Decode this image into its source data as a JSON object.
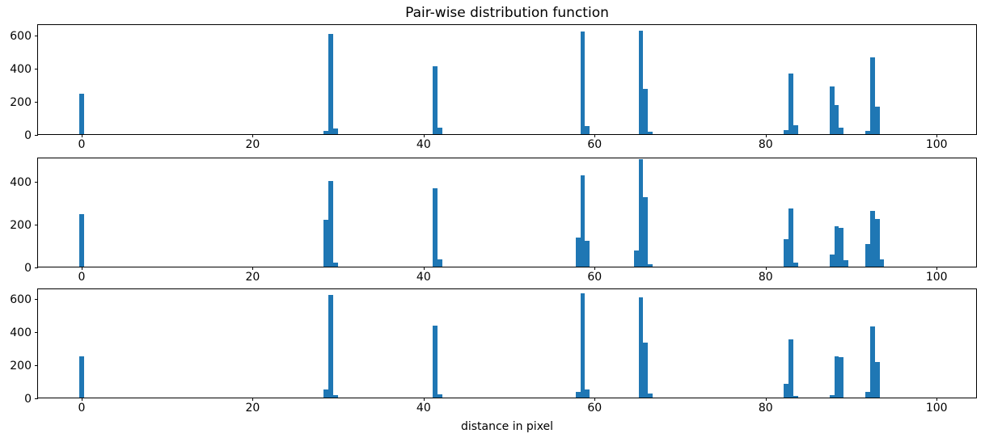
{
  "figure": {
    "title": "Pair-wise distribution function",
    "xlabel": "distance in pixel"
  },
  "chart_data": [
    {
      "type": "bar",
      "title": "Pair-wise distribution function",
      "bar_color": "#1f77b4",
      "bar_width": 0.55,
      "xlim": [
        -5.1,
        104.8
      ],
      "ylim": [
        0,
        668
      ],
      "xticks": [
        0,
        20,
        40,
        60,
        80,
        100
      ],
      "yticks": [
        0,
        200,
        400,
        600
      ],
      "grid": false,
      "legend": "none",
      "bars": [
        [
          0.0,
          245
        ],
        [
          28.6,
          20
        ],
        [
          29.15,
          605
        ],
        [
          29.7,
          35
        ],
        [
          41.35,
          410
        ],
        [
          41.9,
          40
        ],
        [
          58.6,
          620
        ],
        [
          59.15,
          50
        ],
        [
          65.4,
          625
        ],
        [
          65.95,
          275
        ],
        [
          66.5,
          15
        ],
        [
          82.4,
          25
        ],
        [
          82.95,
          365
        ],
        [
          83.5,
          55
        ],
        [
          87.75,
          290
        ],
        [
          88.3,
          175
        ],
        [
          88.85,
          40
        ],
        [
          91.95,
          20
        ],
        [
          92.5,
          465
        ],
        [
          93.05,
          165
        ]
      ]
    },
    {
      "type": "bar",
      "bar_color": "#1f77b4",
      "bar_width": 0.55,
      "xlim": [
        -5.1,
        104.8
      ],
      "ylim": [
        0,
        513
      ],
      "xticks": [
        0,
        20,
        40,
        60,
        80,
        100
      ],
      "yticks": [
        0,
        200,
        400
      ],
      "grid": false,
      "legend": "none",
      "bars": [
        [
          0.0,
          245
        ],
        [
          28.6,
          220
        ],
        [
          29.15,
          400
        ],
        [
          29.7,
          20
        ],
        [
          41.35,
          365
        ],
        [
          41.9,
          35
        ],
        [
          58.05,
          135
        ],
        [
          58.6,
          425
        ],
        [
          59.15,
          120
        ],
        [
          64.85,
          75
        ],
        [
          65.4,
          500
        ],
        [
          65.95,
          325
        ],
        [
          66.5,
          10
        ],
        [
          82.4,
          130
        ],
        [
          82.95,
          270
        ],
        [
          83.5,
          20
        ],
        [
          87.75,
          55
        ],
        [
          88.3,
          190
        ],
        [
          88.85,
          180
        ],
        [
          89.4,
          30
        ],
        [
          91.95,
          105
        ],
        [
          92.5,
          260
        ],
        [
          93.05,
          222
        ],
        [
          93.6,
          34
        ]
      ]
    },
    {
      "type": "bar",
      "xlabel": "distance in pixel",
      "bar_color": "#1f77b4",
      "bar_width": 0.55,
      "xlim": [
        -5.1,
        104.8
      ],
      "ylim": [
        0,
        663
      ],
      "xticks": [
        0,
        20,
        40,
        60,
        80,
        100
      ],
      "yticks": [
        0,
        200,
        400,
        600
      ],
      "grid": false,
      "legend": "none",
      "bars": [
        [
          0.0,
          250
        ],
        [
          28.6,
          50
        ],
        [
          29.15,
          620
        ],
        [
          29.7,
          15
        ],
        [
          41.35,
          435
        ],
        [
          41.9,
          20
        ],
        [
          58.05,
          35
        ],
        [
          58.6,
          630
        ],
        [
          59.15,
          50
        ],
        [
          65.4,
          605
        ],
        [
          65.95,
          330
        ],
        [
          66.5,
          25
        ],
        [
          82.4,
          85
        ],
        [
          82.95,
          350
        ],
        [
          83.5,
          10
        ],
        [
          87.75,
          15
        ],
        [
          88.3,
          250
        ],
        [
          88.85,
          245
        ],
        [
          91.95,
          35
        ],
        [
          92.5,
          430
        ],
        [
          93.05,
          215
        ]
      ]
    }
  ]
}
